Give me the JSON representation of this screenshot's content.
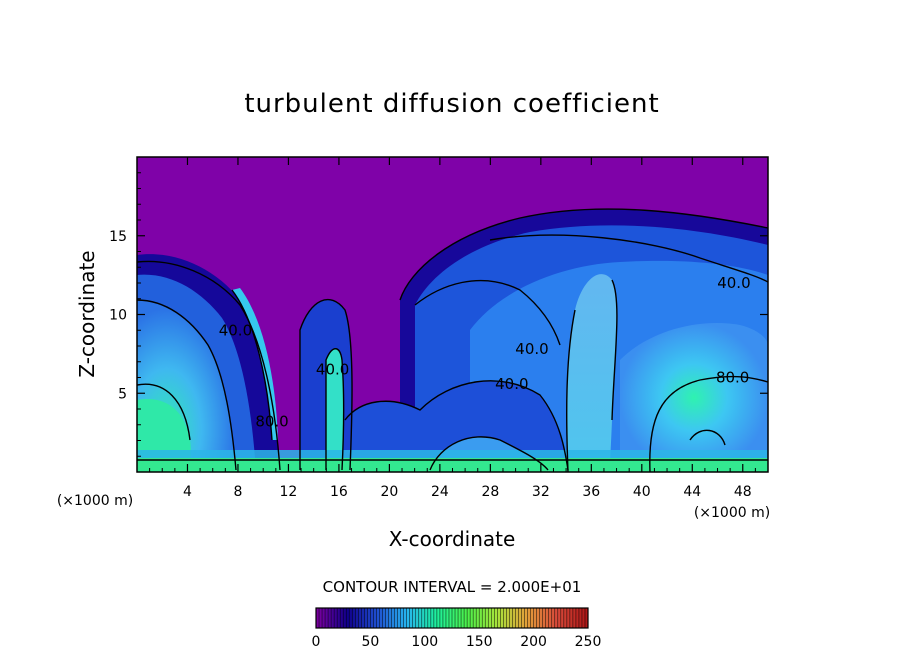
{
  "chart_data": {
    "type": "heatmap",
    "title": "turbulent diffusion coefficient",
    "xlabel": "X-coordinate",
    "ylabel": "Z-coordinate",
    "x_unit": "(×1000 m)",
    "x_unit_right": "(×1000 m)",
    "xlim": [
      0,
      50
    ],
    "ylim": [
      0,
      20
    ],
    "x_ticks": [
      4,
      8,
      12,
      16,
      20,
      24,
      28,
      32,
      36,
      40,
      44,
      48
    ],
    "y_ticks": [
      5,
      10,
      15
    ],
    "contour_interval_text": "CONTOUR INTERVAL = 2.000E+01",
    "contour_labels": [
      {
        "text": "40.0",
        "x": 47.3,
        "z": 12.0
      },
      {
        "text": "40.0",
        "x": 31.3,
        "z": 7.8
      },
      {
        "text": "40.0",
        "x": 29.7,
        "z": 5.6
      },
      {
        "text": "80.0",
        "x": 47.2,
        "z": 6.0
      },
      {
        "text": "40.0",
        "x": 7.8,
        "z": 9.0
      },
      {
        "text": "80.0",
        "x": 10.7,
        "z": 3.2
      },
      {
        "text": "40.0",
        "x": 15.5,
        "z": 6.5
      }
    ],
    "colorbar": {
      "range": [
        0,
        250
      ],
      "ticks": [
        0,
        50,
        100,
        150,
        200,
        250
      ],
      "colors": [
        "#7a00a0",
        "#10008c",
        "#1f4fd0",
        "#27b5ef",
        "#1ef09b",
        "#4cf04a",
        "#a8e33b",
        "#e3a03a",
        "#d94b3a",
        "#b01818"
      ]
    },
    "field_colors": {
      "background": "#7f02a8",
      "dark_blue": "#16089a",
      "blue": "#1f59dc",
      "mid_blue": "#2f86ef",
      "light_blue": "#52b0f2",
      "cyan": "#35d6f0",
      "teal": "#2ce8c0",
      "green": "#33f07e"
    }
  }
}
